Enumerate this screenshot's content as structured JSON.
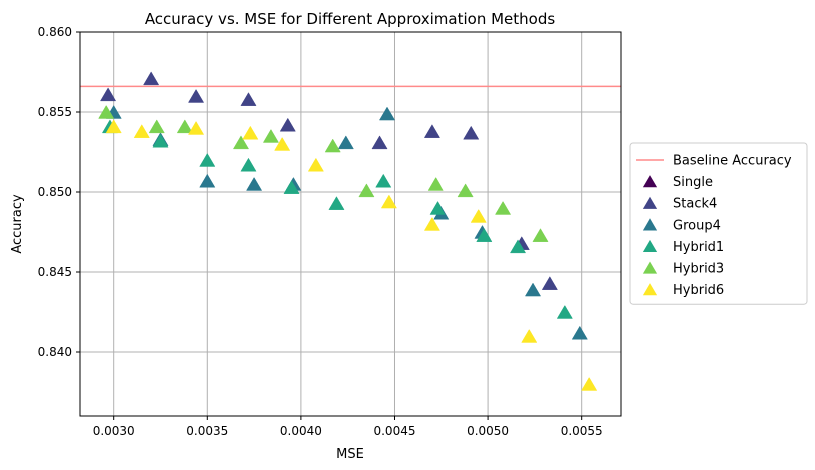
{
  "chart_data": {
    "type": "scatter",
    "title": "Accuracy vs. MSE for Different Approximation Methods",
    "xlabel": "MSE",
    "ylabel": "Accuracy",
    "xlim": [
      0.00282,
      0.00571
    ],
    "ylim": [
      0.836,
      0.86
    ],
    "xticks": [
      0.003,
      0.0035,
      0.004,
      0.0045,
      0.005,
      0.0055
    ],
    "xtick_labels": [
      "0.0030",
      "0.0035",
      "0.0040",
      "0.0045",
      "0.0050",
      "0.0055"
    ],
    "yticks": [
      0.84,
      0.845,
      0.85,
      0.855,
      0.86
    ],
    "ytick_labels": [
      "0.840",
      "0.845",
      "0.850",
      "0.855",
      "0.860"
    ],
    "grid": true,
    "legend_position": "outside-right",
    "baseline": {
      "name": "Baseline Accuracy",
      "value": 0.8566,
      "color": "#ff8a8a"
    },
    "marker": "triangle-up",
    "series": [
      {
        "name": "Single",
        "color": "#440154",
        "points": []
      },
      {
        "name": "Stack4",
        "color": "#414487",
        "points": [
          [
            0.00297,
            0.8561
          ],
          [
            0.0032,
            0.8571
          ],
          [
            0.00344,
            0.856
          ],
          [
            0.00372,
            0.8558
          ],
          [
            0.00393,
            0.8542
          ],
          [
            0.00442,
            0.8531
          ],
          [
            0.0047,
            0.8538
          ],
          [
            0.00491,
            0.8537
          ],
          [
            0.00518,
            0.8468
          ],
          [
            0.00533,
            0.8443
          ]
        ]
      },
      {
        "name": "Group4",
        "color": "#2a788e",
        "points": [
          [
            0.003,
            0.855
          ],
          [
            0.00325,
            0.8533
          ],
          [
            0.0035,
            0.8507
          ],
          [
            0.00375,
            0.8505
          ],
          [
            0.00396,
            0.8505
          ],
          [
            0.00424,
            0.8531
          ],
          [
            0.00446,
            0.8549
          ],
          [
            0.00475,
            0.8487
          ],
          [
            0.00497,
            0.8475
          ],
          [
            0.00524,
            0.8439
          ],
          [
            0.00549,
            0.8412
          ]
        ]
      },
      {
        "name": "Hybrid1",
        "color": "#22a884",
        "points": [
          [
            0.00298,
            0.8541
          ],
          [
            0.00325,
            0.8532
          ],
          [
            0.0035,
            0.852
          ],
          [
            0.00372,
            0.8517
          ],
          [
            0.00395,
            0.8503
          ],
          [
            0.00419,
            0.8493
          ],
          [
            0.00444,
            0.8507
          ],
          [
            0.00473,
            0.849
          ],
          [
            0.00498,
            0.8473
          ],
          [
            0.00516,
            0.8466
          ],
          [
            0.00541,
            0.8425
          ]
        ]
      },
      {
        "name": "Hybrid3",
        "color": "#7ad151",
        "points": [
          [
            0.00296,
            0.855
          ],
          [
            0.00323,
            0.8541
          ],
          [
            0.00338,
            0.8541
          ],
          [
            0.00368,
            0.8531
          ],
          [
            0.00384,
            0.8535
          ],
          [
            0.00417,
            0.8529
          ],
          [
            0.00435,
            0.8501
          ],
          [
            0.00472,
            0.8505
          ],
          [
            0.00488,
            0.8501
          ],
          [
            0.00508,
            0.849
          ],
          [
            0.00528,
            0.8473
          ]
        ]
      },
      {
        "name": "Hybrid6",
        "color": "#fde725",
        "points": [
          [
            0.003,
            0.8541
          ],
          [
            0.00315,
            0.8538
          ],
          [
            0.00344,
            0.854
          ],
          [
            0.00373,
            0.8537
          ],
          [
            0.0039,
            0.853
          ],
          [
            0.00408,
            0.8517
          ],
          [
            0.00447,
            0.8494
          ],
          [
            0.0047,
            0.848
          ],
          [
            0.00495,
            0.8485
          ],
          [
            0.00522,
            0.841
          ],
          [
            0.00554,
            0.838
          ]
        ]
      }
    ]
  }
}
